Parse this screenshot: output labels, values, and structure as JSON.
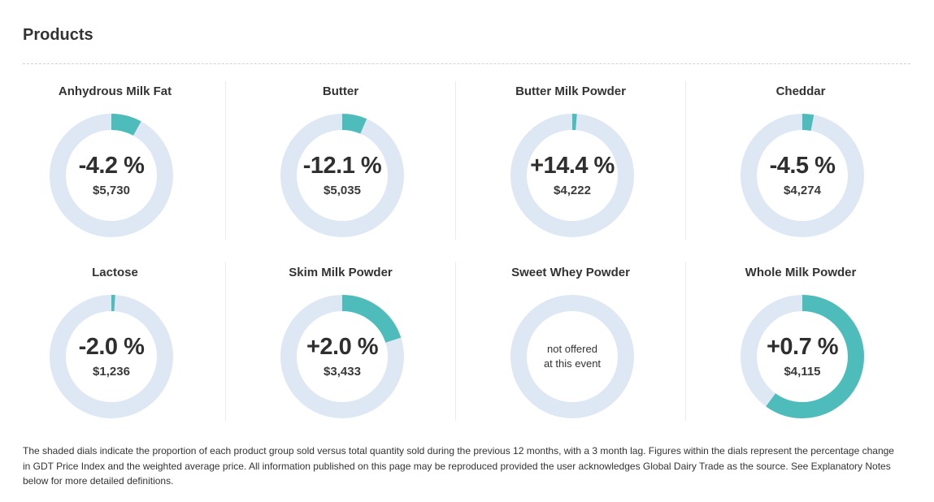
{
  "section": {
    "title": "Products"
  },
  "colors": {
    "track": "#dde8f4",
    "fill": "#4fbcbc"
  },
  "chart_data": {
    "type": "donut",
    "items": [
      {
        "name": "Anhydrous Milk Fat",
        "change": "-4.2 %",
        "price": "$5,730",
        "share": 0.08,
        "offered": true
      },
      {
        "name": "Butter",
        "change": "-12.1 %",
        "price": "$5,035",
        "share": 0.065,
        "offered": true
      },
      {
        "name": "Butter Milk Powder",
        "change": "+14.4 %",
        "price": "$4,222",
        "share": 0.012,
        "offered": true
      },
      {
        "name": "Cheddar",
        "change": "-4.5 %",
        "price": "$4,274",
        "share": 0.03,
        "offered": true
      },
      {
        "name": "Lactose",
        "change": "-2.0 %",
        "price": "$1,236",
        "share": 0.01,
        "offered": true
      },
      {
        "name": "Skim Milk Powder",
        "change": "+2.0 %",
        "price": "$3,433",
        "share": 0.2,
        "offered": true
      },
      {
        "name": "Sweet Whey Powder",
        "change": "",
        "price": "",
        "share": 0,
        "offered": false,
        "note_line1": "not offered",
        "note_line2": "at this event"
      },
      {
        "name": "Whole Milk Powder",
        "change": "+0.7 %",
        "price": "$4,115",
        "share": 0.6,
        "offered": true
      }
    ]
  },
  "footnote": "The shaded dials indicate the proportion of each product group sold versus total quantity sold during the previous 12 months, with a 3 month lag. Figures within the dials represent the percentage change in GDT Price Index and the weighted average price. All information published on this page may be reproduced provided the user acknowledges Global Dairy Trade as the source. See Explanatory Notes below for more detailed definitions."
}
